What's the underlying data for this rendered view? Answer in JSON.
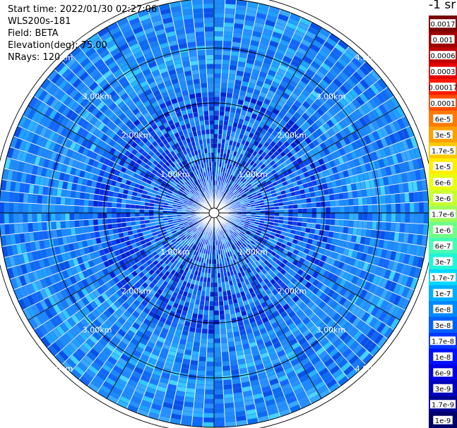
{
  "info": {
    "start_time": "Start time: 2022/01/30 02:27:06",
    "instrument": "WLS200s-181",
    "field": "Field: BETA",
    "elevation": "Elevation(deg): 75.00",
    "nrays": "NRays: 120"
  },
  "plot": {
    "rays": 120,
    "max_range_km": 4.6,
    "range_rings": [
      {
        "km": 1.0,
        "label": "1.00km"
      },
      {
        "km": 2.0,
        "label": "2.00km"
      },
      {
        "km": 3.0,
        "label": "3.00km"
      },
      {
        "km": 4.0,
        "label": "4.00km"
      }
    ]
  },
  "colorbar": {
    "unit_label": "-1 sr",
    "ticks": [
      "0.0017",
      "0.001",
      "0.0006",
      "0.0003",
      "0.00017",
      "0.0001",
      "6e-5",
      "3e-5",
      "1.7e-5",
      "1e-5",
      "6e-6",
      "3e-6",
      "1.7e-6",
      "1e-6",
      "6e-7",
      "3e-7",
      "1.7e-7",
      "1e-7",
      "6e-8",
      "3e-8",
      "1.7e-8",
      "1e-8",
      "6e-9",
      "3e-9",
      "1.7e-9",
      "1e-9"
    ],
    "colors": [
      "#7a0000",
      "#9a0000",
      "#c00000",
      "#e60000",
      "#ff1a00",
      "#ff4d00",
      "#ff7a00",
      "#ffa000",
      "#ffc800",
      "#ffee00",
      "#eaff10",
      "#c8ff30",
      "#9dff5a",
      "#70ff86",
      "#45ffb0",
      "#20f5d8",
      "#00d8ff",
      "#00b0ff",
      "#0088ff",
      "#0060ff",
      "#0038ff",
      "#0010ff",
      "#0000e0",
      "#0000b8",
      "#000090",
      "#000068"
    ]
  }
}
